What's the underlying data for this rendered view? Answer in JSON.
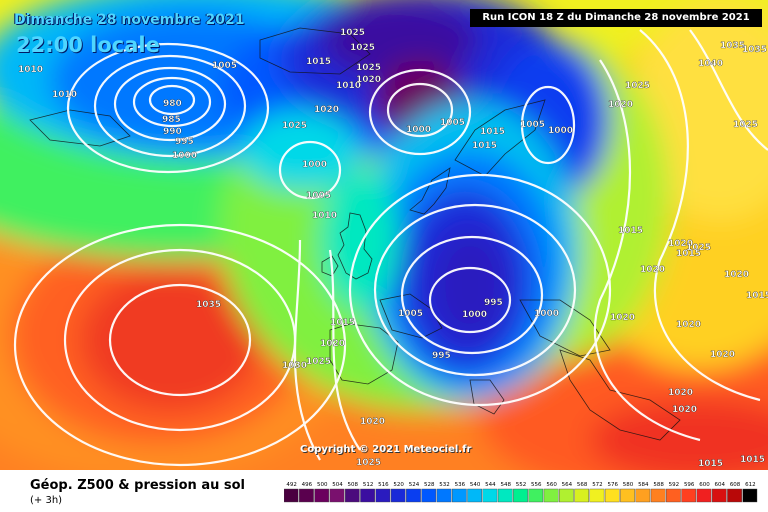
{
  "header": {
    "date": "Dimanche 28 novembre 2021",
    "time": "22:00 locale",
    "run_info": "Run ICON 18 Z du Dimanche 28 novembre 2021"
  },
  "footer": {
    "title": "Géop. Z500 & pression au sol",
    "subtitle": "(+ 3h)",
    "copyright": "Copyright © 2021 Meteociel.fr"
  },
  "legend": {
    "values": [
      "492",
      "496",
      "500",
      "504",
      "508",
      "512",
      "516",
      "520",
      "524",
      "528",
      "532",
      "536",
      "540",
      "544",
      "548",
      "552",
      "556",
      "560",
      "564",
      "568",
      "572",
      "576",
      "580",
      "584",
      "588",
      "592",
      "596",
      "600",
      "604",
      "608",
      "612"
    ],
    "colors": [
      "#4a0040",
      "#5a004e",
      "#6b005e",
      "#7a106e",
      "#4b0b7d",
      "#3b0ea0",
      "#2a1bbf",
      "#1a2ad8",
      "#0a3ef0",
      "#0058ff",
      "#0078ff",
      "#0098ff",
      "#00b8f8",
      "#00d8e8",
      "#00e8c0",
      "#00f090",
      "#40f060",
      "#80f040",
      "#b0f030",
      "#d8f020",
      "#f0f020",
      "#ffe020",
      "#ffc020",
      "#ffa020",
      "#ff8020",
      "#ff6020",
      "#ff4020",
      "#f02020",
      "#d81010",
      "#b80808",
      "#000000"
    ]
  },
  "isobars": [
    {
      "text": "1010"
    },
    {
      "text": "1010"
    },
    {
      "text": "1005"
    },
    {
      "text": "980"
    },
    {
      "text": "985"
    },
    {
      "text": "990"
    },
    {
      "text": "995"
    },
    {
      "text": "1000"
    },
    {
      "text": "1000"
    },
    {
      "text": "1005"
    },
    {
      "text": "1010"
    },
    {
      "text": "1025"
    },
    {
      "text": "1025"
    },
    {
      "text": "1025"
    },
    {
      "text": "1015"
    },
    {
      "text": "1025"
    },
    {
      "text": "1020"
    },
    {
      "text": "1010"
    },
    {
      "text": "1020"
    },
    {
      "text": "1000"
    },
    {
      "text": "1005"
    },
    {
      "text": "1015"
    },
    {
      "text": "1015"
    },
    {
      "text": "1005"
    },
    {
      "text": "1000"
    },
    {
      "text": "1025"
    },
    {
      "text": "1020"
    },
    {
      "text": "1035"
    },
    {
      "text": "1040"
    },
    {
      "text": "1025"
    },
    {
      "text": "1035"
    },
    {
      "text": "1015"
    },
    {
      "text": "1020"
    },
    {
      "text": "1015"
    },
    {
      "text": "1020"
    },
    {
      "text": "1025"
    },
    {
      "text": "1020"
    },
    {
      "text": "1015"
    },
    {
      "text": "1020"
    },
    {
      "text": "1020"
    },
    {
      "text": "1020"
    },
    {
      "text": "1020"
    },
    {
      "text": "1020"
    },
    {
      "text": "1015"
    },
    {
      "text": "1015"
    },
    {
      "text": "1035"
    },
    {
      "text": "1030"
    },
    {
      "text": "1025"
    },
    {
      "text": "1015"
    },
    {
      "text": "1020"
    },
    {
      "text": "1005"
    },
    {
      "text": "995"
    },
    {
      "text": "1000"
    },
    {
      "text": "1000"
    },
    {
      "text": "995"
    },
    {
      "text": "1020"
    },
    {
      "text": "1025"
    }
  ]
}
